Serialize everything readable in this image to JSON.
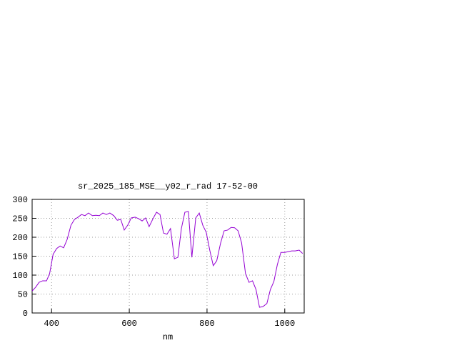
{
  "chart_data": {
    "type": "line",
    "title": "sr_2025_185_MSE__y02_r_rad 17-52-00",
    "x_label": "nm",
    "x": [
      350,
      359,
      368,
      377,
      387,
      395,
      404,
      413,
      422,
      431,
      440,
      450,
      459,
      468,
      477,
      486,
      495,
      505,
      514,
      523,
      532,
      541,
      550,
      560,
      569,
      578,
      587,
      596,
      605,
      615,
      624,
      633,
      642,
      651,
      661,
      670,
      679,
      688,
      697,
      706,
      716,
      725,
      734,
      743,
      752,
      761,
      771,
      780,
      789,
      798,
      807,
      816,
      825,
      835,
      844,
      853,
      862,
      871,
      880,
      889,
      899,
      908,
      917,
      926,
      935,
      944,
      954,
      963,
      972,
      981,
      990,
      1000,
      1009,
      1018,
      1027,
      1037,
      1046
    ],
    "series": [
      {
        "color": "#9400d3",
        "values": [
          58,
          68,
          81,
          85,
          85,
          104,
          155,
          170,
          177,
          172,
          194,
          232,
          247,
          253,
          260,
          257,
          264,
          257,
          258,
          257,
          264,
          260,
          264,
          257,
          245,
          247,
          219,
          232,
          251,
          253,
          249,
          243,
          251,
          228,
          249,
          266,
          260,
          211,
          208,
          223,
          143,
          147,
          223,
          266,
          268,
          147,
          251,
          264,
          232,
          213,
          166,
          125,
          138,
          185,
          217,
          219,
          226,
          225,
          217,
          185,
          104,
          81,
          85,
          62,
          15,
          17,
          25,
          62,
          83,
          128,
          160,
          160,
          162,
          164,
          164,
          166,
          157
        ]
      }
    ],
    "xlim": [
      350,
      1050
    ],
    "ylim": [
      0,
      300
    ],
    "xticks": [
      400,
      600,
      800,
      1000
    ],
    "yticks": [
      0,
      50,
      100,
      150,
      200,
      250,
      300
    ],
    "grid": true
  }
}
